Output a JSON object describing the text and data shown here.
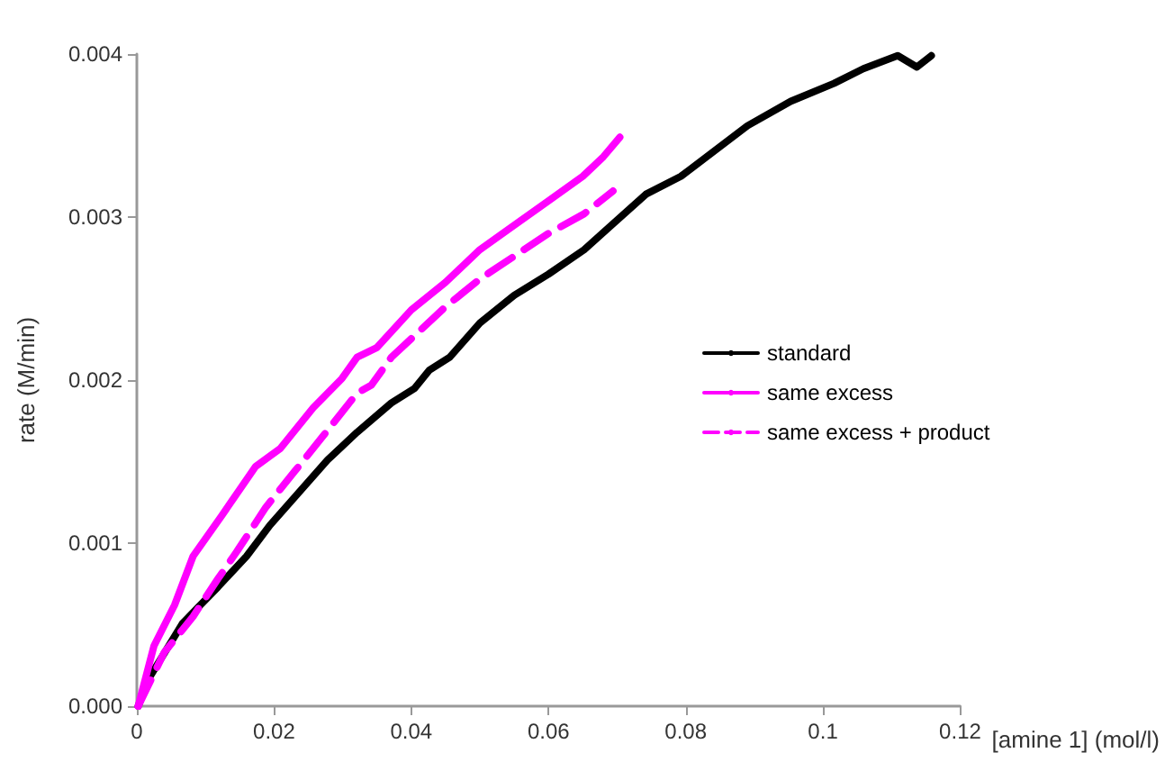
{
  "chart_data": {
    "type": "line",
    "xlabel": "[amine 1] (mol/l)",
    "ylabel": "rate (M/min)",
    "xlim": [
      0,
      0.12
    ],
    "xticks": [
      0,
      0.02,
      0.04,
      0.06,
      0.08,
      0.1,
      0.12
    ],
    "ylim": [
      0,
      0.004
    ],
    "yticks": [
      {
        "value": 0,
        "label": "0.000"
      },
      {
        "value": 0.001,
        "label": "0.001"
      },
      {
        "value": 0.002,
        "label": "0.002"
      },
      {
        "value": 0.003,
        "label": "0.003"
      },
      {
        "value": 0.004,
        "label": "0.004"
      }
    ],
    "grid": false,
    "legend": "right",
    "marker": "none",
    "series": [
      {
        "name": "standard",
        "color": "#000000",
        "line_style": "solid",
        "x": [
          0.0002,
          0.0019,
          0.0067,
          0.0118,
          0.016,
          0.0194,
          0.0236,
          0.0278,
          0.0321,
          0.0371,
          0.0405,
          0.0426,
          0.0456,
          0.05,
          0.055,
          0.06,
          0.0652,
          0.0742,
          0.0793,
          0.089,
          0.0953,
          0.1016,
          0.1059,
          0.1109,
          0.1137,
          0.1158
        ],
        "values": [
          0,
          0.00018,
          0.00051,
          0.00073,
          0.00092,
          0.00111,
          0.00131,
          0.00151,
          0.00168,
          0.00186,
          0.00195,
          0.00206,
          0.00214,
          0.00235,
          0.00252,
          0.00265,
          0.0028,
          0.00314,
          0.00325,
          0.00356,
          0.00371,
          0.00382,
          0.00391,
          0.00399,
          0.00392,
          0.00399
        ]
      },
      {
        "name": "same excess",
        "color": "#ff00ff",
        "line_style": "solid",
        "x": [
          0.0002,
          0.0025,
          0.0055,
          0.0082,
          0.0124,
          0.0173,
          0.0209,
          0.0257,
          0.0299,
          0.0321,
          0.035,
          0.04,
          0.045,
          0.05,
          0.06,
          0.065,
          0.068,
          0.0704
        ],
        "values": [
          0,
          0.00037,
          0.00062,
          0.00092,
          0.00117,
          0.00147,
          0.00158,
          0.00183,
          0.00201,
          0.00214,
          0.0022,
          0.00243,
          0.0026,
          0.0028,
          0.0031,
          0.00325,
          0.00337,
          0.00349
        ]
      },
      {
        "name": "same excess + product",
        "color": "#ff00ff",
        "line_style": "dashed",
        "x": [
          0.0002,
          0.004,
          0.0082,
          0.0118,
          0.0146,
          0.0188,
          0.023,
          0.0272,
          0.0321,
          0.0342,
          0.0371,
          0.045,
          0.05,
          0.055,
          0.06,
          0.0652,
          0.0694
        ],
        "values": [
          0,
          0.00033,
          0.00055,
          0.00078,
          0.00095,
          0.00122,
          0.00144,
          0.00166,
          0.00192,
          0.00197,
          0.00214,
          0.00245,
          0.00262,
          0.00276,
          0.0029,
          0.00302,
          0.00316
        ]
      }
    ]
  }
}
